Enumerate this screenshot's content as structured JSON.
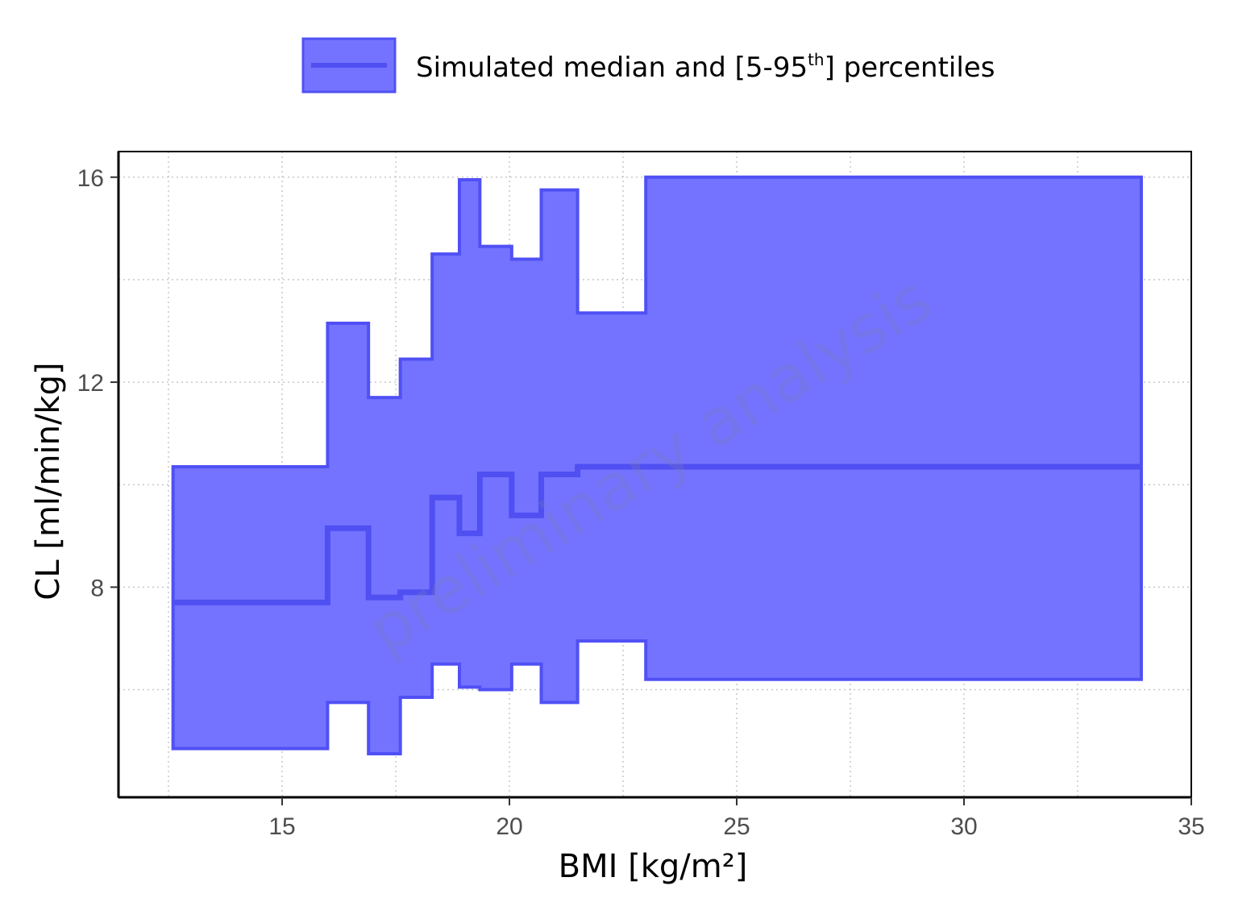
{
  "legend": {
    "text_main": "Simulated median and [5-95",
    "text_sup": "th",
    "text_end": "] percentiles"
  },
  "watermark": "preliminary analysis",
  "colors": {
    "band_fill": "#7373ff",
    "band_stroke": "#5050f5",
    "median_line": "#4f4ff2",
    "grid": "#c8c8c8",
    "axis": "#000000"
  },
  "chart_data": {
    "type": "area",
    "xlabel": "BMI [kg/m²]",
    "ylabel": "CL [ml/min/kg]",
    "xlim": [
      11.4,
      35
    ],
    "ylim": [
      3.9,
      16.5
    ],
    "xticks": [
      15,
      20,
      25,
      30,
      35
    ],
    "yticks": [
      8,
      12,
      16
    ],
    "grid": true,
    "legend_position": "top-center",
    "step": "post",
    "x": [
      12.6,
      16.0,
      16.9,
      17.6,
      18.3,
      18.9,
      19.35,
      20.05,
      20.7,
      21.5,
      23.0,
      33.9
    ],
    "series": [
      {
        "name": "Simulated median and [5-95th] percentiles",
        "role": "p95",
        "values": [
          10.35,
          13.15,
          11.7,
          12.45,
          14.5,
          15.95,
          14.65,
          14.4,
          15.75,
          13.35,
          16.0,
          16.0
        ]
      },
      {
        "name": "Simulated median and [5-95th] percentiles",
        "role": "median",
        "values": [
          7.7,
          9.15,
          7.8,
          7.9,
          9.75,
          9.05,
          10.2,
          9.4,
          10.2,
          10.35,
          10.35,
          10.35
        ]
      },
      {
        "name": "Simulated median and [5-95th] percentiles",
        "role": "p05",
        "values": [
          4.85,
          5.75,
          4.75,
          5.85,
          6.5,
          6.05,
          6.0,
          6.5,
          5.75,
          6.95,
          6.2,
          6.2
        ]
      }
    ]
  }
}
